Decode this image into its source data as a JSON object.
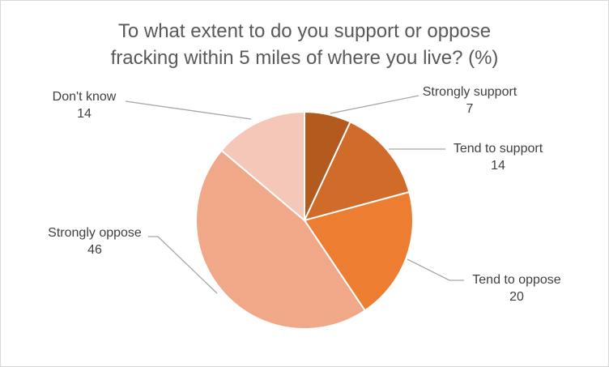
{
  "chart_data": {
    "type": "pie",
    "title_lines": [
      "To what extent to do you support or oppose",
      "fracking within 5 miles of where you live? (%)"
    ],
    "slices": [
      {
        "label": "Strongly support",
        "value": 7,
        "color": "#b35a1f"
      },
      {
        "label": "Tend to support",
        "value": 14,
        "color": "#d16b29"
      },
      {
        "label": "Tend to oppose",
        "value": 20,
        "color": "#ed7d31"
      },
      {
        "label": "Strongly oppose",
        "value": 46,
        "color": "#f0a888"
      },
      {
        "label": "Don't know",
        "value": 14,
        "color": "#f5c7b8"
      }
    ],
    "start_angle_deg": 0,
    "direction": "clockwise",
    "legend": "none"
  }
}
